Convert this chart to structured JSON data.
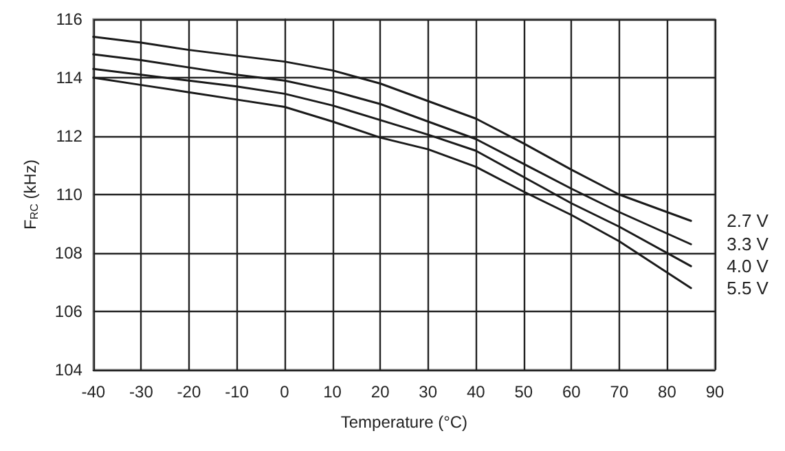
{
  "chart_data": {
    "type": "line",
    "xlabel": "Temperature (°C)",
    "ylabel": "F$_{RC}$ (kHz)",
    "xlim": [
      -40,
      90
    ],
    "xticks": [
      -40,
      -30,
      -20,
      -10,
      0,
      10,
      20,
      30,
      40,
      50,
      60,
      70,
      80,
      90
    ],
    "ylim": [
      104,
      116
    ],
    "yticks": [
      104,
      106,
      108,
      110,
      112,
      114,
      116
    ],
    "grid": true,
    "marker": "none",
    "line_style": "solid",
    "x": [
      -40,
      -30,
      -20,
      -10,
      0,
      10,
      20,
      30,
      40,
      50,
      60,
      70,
      85
    ],
    "series": [
      {
        "name": "2.7 V",
        "color": "#1a1a1a",
        "values": [
          115.4,
          115.2,
          114.95,
          114.75,
          114.55,
          114.25,
          113.8,
          113.2,
          112.6,
          111.75,
          110.85,
          110.0,
          109.1
        ]
      },
      {
        "name": "3.3 V",
        "color": "#1a1a1a",
        "values": [
          114.8,
          114.6,
          114.35,
          114.1,
          113.9,
          113.55,
          113.1,
          112.5,
          111.9,
          111.05,
          110.2,
          109.4,
          108.3
        ]
      },
      {
        "name": "4.0 V",
        "color": "#1a1a1a",
        "values": [
          114.3,
          114.1,
          113.9,
          113.7,
          113.45,
          113.05,
          112.55,
          112.05,
          111.5,
          110.6,
          109.7,
          108.9,
          107.55
        ]
      },
      {
        "name": "5.5 V",
        "color": "#1a1a1a",
        "values": [
          114.0,
          113.75,
          113.5,
          113.25,
          113.0,
          112.5,
          111.95,
          111.55,
          110.95,
          110.1,
          109.3,
          108.4,
          106.8
        ]
      }
    ]
  }
}
